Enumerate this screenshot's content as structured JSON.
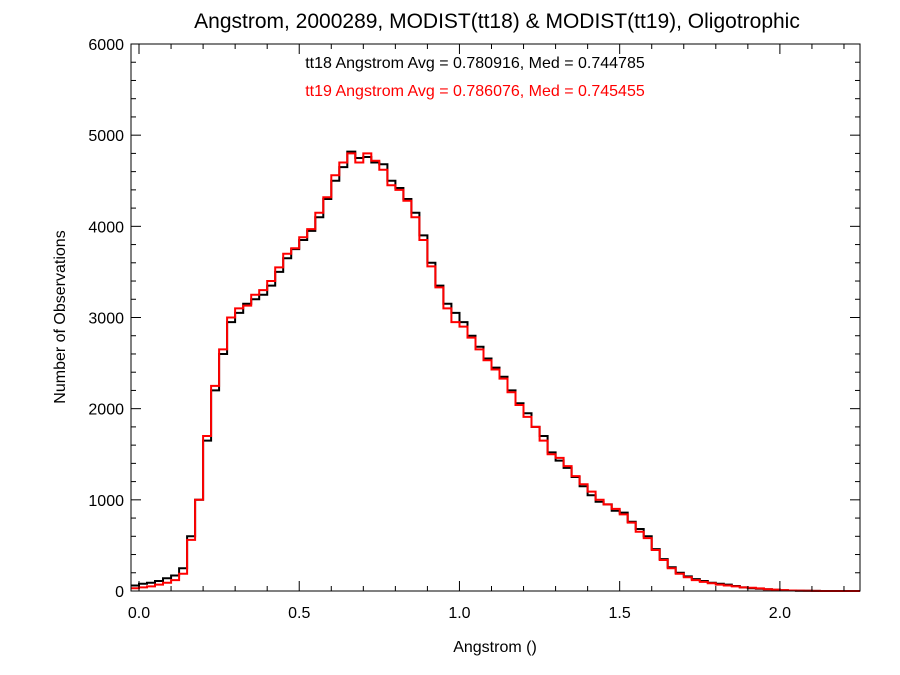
{
  "chart_data": {
    "type": "line",
    "title": "Angstrom, 2000289, MODIST(tt18) & MODIST(tt19), Oligotrophic",
    "xlabel": "Angstrom ()",
    "ylabel": "Number of Observations",
    "xlim": [
      -0.025,
      2.25
    ],
    "ylim": [
      0,
      6000
    ],
    "xticks": [
      0.0,
      0.5,
      1.0,
      1.5,
      2.0
    ],
    "xtick_labels": [
      "0.0",
      "0.5",
      "1.0",
      "1.5",
      "2.0"
    ],
    "yticks": [
      0,
      1000,
      2000,
      3000,
      4000,
      5000,
      6000
    ],
    "ytick_labels": [
      "0",
      "1000",
      "2000",
      "3000",
      "4000",
      "5000",
      "6000"
    ],
    "grid": false,
    "step": true,
    "annotations": [
      {
        "text": "tt18 Angstrom Avg = 0.780916, Med = 0.744785",
        "color": "#000000"
      },
      {
        "text": "tt19 Angstrom Avg = 0.786076, Med = 0.745455",
        "color": "#ff0000"
      }
    ],
    "series": [
      {
        "color": "#000000",
        "x": [
          -0.025,
          0.0,
          0.025,
          0.05,
          0.075,
          0.1,
          0.125,
          0.15,
          0.175,
          0.2,
          0.225,
          0.25,
          0.275,
          0.3,
          0.325,
          0.35,
          0.375,
          0.4,
          0.425,
          0.45,
          0.475,
          0.5,
          0.525,
          0.55,
          0.575,
          0.6,
          0.625,
          0.65,
          0.675,
          0.7,
          0.725,
          0.75,
          0.775,
          0.8,
          0.825,
          0.85,
          0.875,
          0.9,
          0.925,
          0.95,
          0.975,
          1.0,
          1.025,
          1.05,
          1.075,
          1.1,
          1.125,
          1.15,
          1.175,
          1.2,
          1.225,
          1.25,
          1.275,
          1.3,
          1.325,
          1.35,
          1.375,
          1.4,
          1.425,
          1.45,
          1.475,
          1.5,
          1.525,
          1.55,
          1.575,
          1.6,
          1.625,
          1.65,
          1.675,
          1.7,
          1.725,
          1.75,
          1.775,
          1.8,
          1.825,
          1.85,
          1.875,
          1.9,
          1.925,
          1.95,
          1.975,
          2.0,
          2.025,
          2.05,
          2.075,
          2.1,
          2.125,
          2.15,
          2.175,
          2.2,
          2.225,
          2.25
        ],
        "y": [
          60,
          80,
          90,
          110,
          140,
          170,
          250,
          600,
          1000,
          1650,
          2200,
          2600,
          2950,
          3050,
          3150,
          3200,
          3250,
          3350,
          3500,
          3650,
          3750,
          3850,
          3950,
          4100,
          4300,
          4500,
          4650,
          4820,
          4750,
          4760,
          4700,
          4680,
          4500,
          4420,
          4300,
          4150,
          3900,
          3600,
          3350,
          3150,
          3050,
          2950,
          2800,
          2680,
          2550,
          2450,
          2350,
          2200,
          2060,
          1950,
          1800,
          1700,
          1520,
          1430,
          1350,
          1250,
          1150,
          1050,
          980,
          950,
          880,
          860,
          760,
          680,
          600,
          460,
          350,
          260,
          200,
          160,
          130,
          110,
          90,
          80,
          70,
          55,
          40,
          30,
          25,
          20,
          12,
          8,
          5,
          3,
          2,
          1,
          0,
          0,
          0,
          0,
          0,
          0
        ]
      },
      {
        "color": "#ff0000",
        "x": [
          -0.025,
          0.0,
          0.025,
          0.05,
          0.075,
          0.1,
          0.125,
          0.15,
          0.175,
          0.2,
          0.225,
          0.25,
          0.275,
          0.3,
          0.325,
          0.35,
          0.375,
          0.4,
          0.425,
          0.45,
          0.475,
          0.5,
          0.525,
          0.55,
          0.575,
          0.6,
          0.625,
          0.65,
          0.675,
          0.7,
          0.725,
          0.75,
          0.775,
          0.8,
          0.825,
          0.85,
          0.875,
          0.9,
          0.925,
          0.95,
          0.975,
          1.0,
          1.025,
          1.05,
          1.075,
          1.1,
          1.125,
          1.15,
          1.175,
          1.2,
          1.225,
          1.25,
          1.275,
          1.3,
          1.325,
          1.35,
          1.375,
          1.4,
          1.425,
          1.45,
          1.475,
          1.5,
          1.525,
          1.55,
          1.575,
          1.6,
          1.625,
          1.65,
          1.675,
          1.7,
          1.725,
          1.75,
          1.775,
          1.8,
          1.825,
          1.85,
          1.875,
          1.9,
          1.925,
          1.95,
          1.975,
          2.0,
          2.025,
          2.05,
          2.075,
          2.1,
          2.125,
          2.15,
          2.175,
          2.2,
          2.225,
          2.25
        ],
        "y": [
          30,
          40,
          50,
          70,
          90,
          120,
          190,
          560,
          1000,
          1700,
          2250,
          2650,
          3000,
          3100,
          3130,
          3250,
          3300,
          3400,
          3550,
          3700,
          3760,
          3880,
          3970,
          4150,
          4320,
          4560,
          4700,
          4800,
          4700,
          4800,
          4720,
          4620,
          4450,
          4400,
          4280,
          4100,
          3850,
          3560,
          3330,
          3100,
          2950,
          2900,
          2780,
          2650,
          2530,
          2430,
          2330,
          2180,
          2040,
          1910,
          1800,
          1650,
          1500,
          1460,
          1370,
          1260,
          1170,
          1090,
          1000,
          950,
          900,
          840,
          750,
          650,
          580,
          450,
          340,
          250,
          190,
          150,
          120,
          100,
          85,
          70,
          60,
          50,
          40,
          35,
          28,
          20,
          15,
          10,
          6,
          4,
          2,
          1,
          0,
          0,
          0,
          0,
          0,
          0
        ]
      }
    ]
  }
}
